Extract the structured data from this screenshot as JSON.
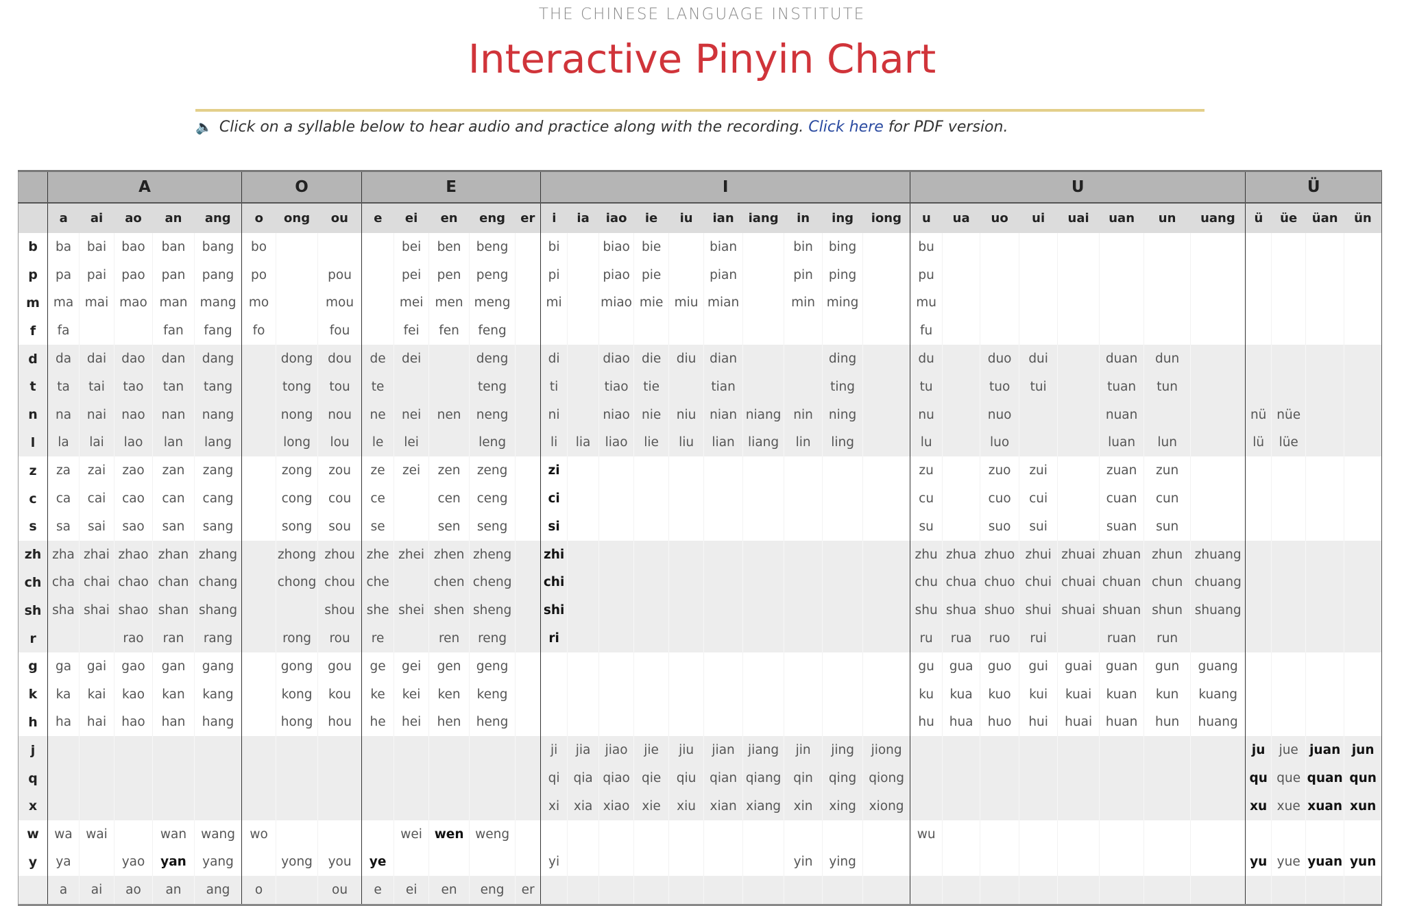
{
  "header": {
    "institute": "THE CHINESE LANGUAGE INSTITUTE",
    "title": "Interactive Pinyin Chart",
    "instruction_icon": "speaker-icon",
    "instruction_text": "Click on a syllable below to hear audio and practice along with the recording.",
    "link_text": "Click here",
    "instruction_suffix": "for PDF version."
  },
  "colors": {
    "title": "#d0343a",
    "rule": "#e3cf8a",
    "link": "#2a4aa0",
    "header_bg": "#b5b5b5",
    "subheader_bg": "#dcdcdc",
    "shade_bg": "#ededed"
  },
  "groups": [
    {
      "label": "A",
      "finals": [
        "a",
        "ai",
        "ao",
        "an",
        "ang"
      ]
    },
    {
      "label": "O",
      "finals": [
        "o",
        "ong",
        "ou"
      ]
    },
    {
      "label": "E",
      "finals": [
        "e",
        "ei",
        "en",
        "eng",
        "er"
      ]
    },
    {
      "label": "I",
      "finals": [
        "i",
        "ia",
        "iao",
        "ie",
        "iu",
        "ian",
        "iang",
        "in",
        "ing",
        "iong"
      ]
    },
    {
      "label": "U",
      "finals": [
        "u",
        "ua",
        "uo",
        "ui",
        "uai",
        "uan",
        "un",
        "uang"
      ]
    },
    {
      "label": "Ü",
      "finals": [
        "ü",
        "üe",
        "üan",
        "ün"
      ]
    }
  ],
  "bold_syllables": [
    "zi",
    "ci",
    "si",
    "zhi",
    "chi",
    "shi",
    "ri",
    "wen",
    "yan",
    "ye",
    "ju",
    "juan",
    "jun",
    "qu",
    "quan",
    "qun",
    "xu",
    "xuan",
    "xun",
    "yu",
    "yuan",
    "yun"
  ],
  "rows": [
    {
      "initial": "b",
      "cells": [
        "ba",
        "bai",
        "bao",
        "ban",
        "bang",
        "bo",
        "",
        "",
        "",
        "bei",
        "ben",
        "beng",
        "",
        "bi",
        "",
        "biao",
        "bie",
        "",
        "bian",
        "",
        "bin",
        "bing",
        "",
        "bu",
        "",
        "",
        "",
        "",
        "",
        "",
        "",
        "",
        "",
        "",
        ""
      ]
    },
    {
      "initial": "p",
      "cells": [
        "pa",
        "pai",
        "pao",
        "pan",
        "pang",
        "po",
        "",
        "pou",
        "",
        "pei",
        "pen",
        "peng",
        "",
        "pi",
        "",
        "piao",
        "pie",
        "",
        "pian",
        "",
        "pin",
        "ping",
        "",
        "pu",
        "",
        "",
        "",
        "",
        "",
        "",
        "",
        "",
        "",
        "",
        ""
      ]
    },
    {
      "initial": "m",
      "cells": [
        "ma",
        "mai",
        "mao",
        "man",
        "mang",
        "mo",
        "",
        "mou",
        "",
        "mei",
        "men",
        "meng",
        "",
        "mi",
        "",
        "miao",
        "mie",
        "miu",
        "mian",
        "",
        "min",
        "ming",
        "",
        "mu",
        "",
        "",
        "",
        "",
        "",
        "",
        "",
        "",
        "",
        "",
        ""
      ]
    },
    {
      "initial": "f",
      "cells": [
        "fa",
        "",
        "",
        "fan",
        "fang",
        "fo",
        "",
        "fou",
        "",
        "fei",
        "fen",
        "feng",
        "",
        "",
        "",
        "",
        "",
        "",
        "",
        "",
        "",
        "",
        "",
        "fu",
        "",
        "",
        "",
        "",
        "",
        "",
        "",
        "",
        "",
        "",
        ""
      ]
    },
    {
      "initial": "d",
      "cells": [
        "da",
        "dai",
        "dao",
        "dan",
        "dang",
        "",
        "dong",
        "dou",
        "de",
        "dei",
        "",
        "deng",
        "",
        "di",
        "",
        "diao",
        "die",
        "diu",
        "dian",
        "",
        "",
        "ding",
        "",
        "du",
        "",
        "duo",
        "dui",
        "",
        "duan",
        "dun",
        "",
        "",
        "",
        "",
        ""
      ]
    },
    {
      "initial": "t",
      "cells": [
        "ta",
        "tai",
        "tao",
        "tan",
        "tang",
        "",
        "tong",
        "tou",
        "te",
        "",
        "",
        "teng",
        "",
        "ti",
        "",
        "tiao",
        "tie",
        "",
        "tian",
        "",
        "",
        "ting",
        "",
        "tu",
        "",
        "tuo",
        "tui",
        "",
        "tuan",
        "tun",
        "",
        "",
        "",
        "",
        ""
      ]
    },
    {
      "initial": "n",
      "cells": [
        "na",
        "nai",
        "nao",
        "nan",
        "nang",
        "",
        "nong",
        "nou",
        "ne",
        "nei",
        "nen",
        "neng",
        "",
        "ni",
        "",
        "niao",
        "nie",
        "niu",
        "nian",
        "niang",
        "nin",
        "ning",
        "",
        "nu",
        "",
        "nuo",
        "",
        "",
        "nuan",
        "",
        "",
        "nü",
        "nüe",
        "",
        ""
      ]
    },
    {
      "initial": "l",
      "cells": [
        "la",
        "lai",
        "lao",
        "lan",
        "lang",
        "",
        "long",
        "lou",
        "le",
        "lei",
        "",
        "leng",
        "",
        "li",
        "lia",
        "liao",
        "lie",
        "liu",
        "lian",
        "liang",
        "lin",
        "ling",
        "",
        "lu",
        "",
        "luo",
        "",
        "",
        "luan",
        "lun",
        "",
        "lü",
        "lüe",
        "",
        ""
      ]
    },
    {
      "initial": "z",
      "cells": [
        "za",
        "zai",
        "zao",
        "zan",
        "zang",
        "",
        "zong",
        "zou",
        "ze",
        "zei",
        "zen",
        "zeng",
        "",
        "zi",
        "",
        "",
        "",
        "",
        "",
        "",
        "",
        "",
        "",
        "zu",
        "",
        "zuo",
        "zui",
        "",
        "zuan",
        "zun",
        "",
        "",
        "",
        "",
        ""
      ]
    },
    {
      "initial": "c",
      "cells": [
        "ca",
        "cai",
        "cao",
        "can",
        "cang",
        "",
        "cong",
        "cou",
        "ce",
        "",
        "cen",
        "ceng",
        "",
        "ci",
        "",
        "",
        "",
        "",
        "",
        "",
        "",
        "",
        "",
        "cu",
        "",
        "cuo",
        "cui",
        "",
        "cuan",
        "cun",
        "",
        "",
        "",
        "",
        ""
      ]
    },
    {
      "initial": "s",
      "cells": [
        "sa",
        "sai",
        "sao",
        "san",
        "sang",
        "",
        "song",
        "sou",
        "se",
        "",
        "sen",
        "seng",
        "",
        "si",
        "",
        "",
        "",
        "",
        "",
        "",
        "",
        "",
        "",
        "su",
        "",
        "suo",
        "sui",
        "",
        "suan",
        "sun",
        "",
        "",
        "",
        "",
        ""
      ]
    },
    {
      "initial": "zh",
      "cells": [
        "zha",
        "zhai",
        "zhao",
        "zhan",
        "zhang",
        "",
        "zhong",
        "zhou",
        "zhe",
        "zhei",
        "zhen",
        "zheng",
        "",
        "zhi",
        "",
        "",
        "",
        "",
        "",
        "",
        "",
        "",
        "",
        "zhu",
        "zhua",
        "zhuo",
        "zhui",
        "zhuai",
        "zhuan",
        "zhun",
        "zhuang",
        "",
        "",
        "",
        ""
      ]
    },
    {
      "initial": "ch",
      "cells": [
        "cha",
        "chai",
        "chao",
        "chan",
        "chang",
        "",
        "chong",
        "chou",
        "che",
        "",
        "chen",
        "cheng",
        "",
        "chi",
        "",
        "",
        "",
        "",
        "",
        "",
        "",
        "",
        "",
        "chu",
        "chua",
        "chuo",
        "chui",
        "chuai",
        "chuan",
        "chun",
        "chuang",
        "",
        "",
        "",
        ""
      ]
    },
    {
      "initial": "sh",
      "cells": [
        "sha",
        "shai",
        "shao",
        "shan",
        "shang",
        "",
        "",
        "shou",
        "she",
        "shei",
        "shen",
        "sheng",
        "",
        "shi",
        "",
        "",
        "",
        "",
        "",
        "",
        "",
        "",
        "",
        "shu",
        "shua",
        "shuo",
        "shui",
        "shuai",
        "shuan",
        "shun",
        "shuang",
        "",
        "",
        "",
        ""
      ]
    },
    {
      "initial": "r",
      "cells": [
        "",
        "",
        "rao",
        "ran",
        "rang",
        "",
        "rong",
        "rou",
        "re",
        "",
        "ren",
        "reng",
        "",
        "ri",
        "",
        "",
        "",
        "",
        "",
        "",
        "",
        "",
        "",
        "ru",
        "rua",
        "ruo",
        "rui",
        "",
        "ruan",
        "run",
        "",
        "",
        "",
        "",
        ""
      ]
    },
    {
      "initial": "g",
      "cells": [
        "ga",
        "gai",
        "gao",
        "gan",
        "gang",
        "",
        "gong",
        "gou",
        "ge",
        "gei",
        "gen",
        "geng",
        "",
        "",
        "",
        "",
        "",
        "",
        "",
        "",
        "",
        "",
        "",
        "gu",
        "gua",
        "guo",
        "gui",
        "guai",
        "guan",
        "gun",
        "guang",
        "",
        "",
        "",
        ""
      ]
    },
    {
      "initial": "k",
      "cells": [
        "ka",
        "kai",
        "kao",
        "kan",
        "kang",
        "",
        "kong",
        "kou",
        "ke",
        "kei",
        "ken",
        "keng",
        "",
        "",
        "",
        "",
        "",
        "",
        "",
        "",
        "",
        "",
        "",
        "ku",
        "kua",
        "kuo",
        "kui",
        "kuai",
        "kuan",
        "kun",
        "kuang",
        "",
        "",
        "",
        ""
      ]
    },
    {
      "initial": "h",
      "cells": [
        "ha",
        "hai",
        "hao",
        "han",
        "hang",
        "",
        "hong",
        "hou",
        "he",
        "hei",
        "hen",
        "heng",
        "",
        "",
        "",
        "",
        "",
        "",
        "",
        "",
        "",
        "",
        "",
        "hu",
        "hua",
        "huo",
        "hui",
        "huai",
        "huan",
        "hun",
        "huang",
        "",
        "",
        "",
        ""
      ]
    },
    {
      "initial": "j",
      "cells": [
        "",
        "",
        "",
        "",
        "",
        "",
        "",
        "",
        "",
        "",
        "",
        "",
        "",
        "ji",
        "jia",
        "jiao",
        "jie",
        "jiu",
        "jian",
        "jiang",
        "jin",
        "jing",
        "jiong",
        "",
        "",
        "",
        "",
        "",
        "",
        "",
        "",
        "ju",
        "jue",
        "juan",
        "jun"
      ]
    },
    {
      "initial": "q",
      "cells": [
        "",
        "",
        "",
        "",
        "",
        "",
        "",
        "",
        "",
        "",
        "",
        "",
        "",
        "qi",
        "qia",
        "qiao",
        "qie",
        "qiu",
        "qian",
        "qiang",
        "qin",
        "qing",
        "qiong",
        "",
        "",
        "",
        "",
        "",
        "",
        "",
        "",
        "qu",
        "que",
        "quan",
        "qun"
      ]
    },
    {
      "initial": "x",
      "cells": [
        "",
        "",
        "",
        "",
        "",
        "",
        "",
        "",
        "",
        "",
        "",
        "",
        "",
        "xi",
        "xia",
        "xiao",
        "xie",
        "xiu",
        "xian",
        "xiang",
        "xin",
        "xing",
        "xiong",
        "",
        "",
        "",
        "",
        "",
        "",
        "",
        "",
        "xu",
        "xue",
        "xuan",
        "xun"
      ]
    },
    {
      "initial": "w",
      "cells": [
        "wa",
        "wai",
        "",
        "wan",
        "wang",
        "wo",
        "",
        "",
        "",
        "wei",
        "wen",
        "weng",
        "",
        "",
        "",
        "",
        "",
        "",
        "",
        "",
        "",
        "",
        "",
        "wu",
        "",
        "",
        "",
        "",
        "",
        "",
        "",
        "",
        "",
        "",
        ""
      ]
    },
    {
      "initial": "y",
      "cells": [
        "ya",
        "",
        "yao",
        "yan",
        "yang",
        "",
        "yong",
        "you",
        "ye",
        "",
        "",
        "",
        "",
        "yi",
        "",
        "",
        "",
        "",
        "",
        "",
        "yin",
        "ying",
        "",
        "",
        "",
        "",
        "",
        "",
        "",
        "",
        "",
        "yu",
        "yue",
        "yuan",
        "yun"
      ]
    },
    {
      "initial": "",
      "cells": [
        "a",
        "ai",
        "ao",
        "an",
        "ang",
        "o",
        "",
        "ou",
        "e",
        "ei",
        "en",
        "eng",
        "er",
        "",
        "",
        "",
        "",
        "",
        "",
        "",
        "",
        "",
        "",
        "",
        "",
        "",
        "",
        "",
        "",
        "",
        "",
        "",
        "",
        "",
        ""
      ]
    }
  ]
}
